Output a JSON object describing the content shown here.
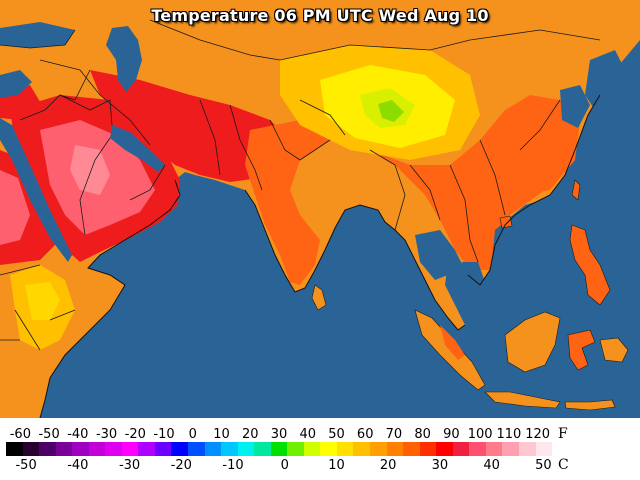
{
  "map": {
    "title": "Temperature 06 PM UTC Wed Aug 10",
    "ocean_color": "#2a6496",
    "land_color": "#f5921e",
    "border_color": "#1a1a1a"
  },
  "legend": {
    "f_unit": "F",
    "c_unit": "C",
    "f_labels": [
      "-60",
      "-50",
      "-40",
      "-30",
      "-20",
      "-10",
      "0",
      "10",
      "20",
      "30",
      "40",
      "50",
      "60",
      "70",
      "80",
      "90",
      "100",
      "110",
      "120"
    ],
    "c_labels": [
      "-50",
      "-40",
      "-30",
      "-20",
      "-10",
      "0",
      "10",
      "20",
      "30",
      "40",
      "50"
    ],
    "colors": [
      "#000000",
      "#2a0033",
      "#4d0066",
      "#7a0099",
      "#a000c0",
      "#c300d8",
      "#e000f0",
      "#ff00ff",
      "#b000ff",
      "#6a00ff",
      "#0000ff",
      "#0050ff",
      "#0090ff",
      "#00c8ff",
      "#00f0f0",
      "#00e8a0",
      "#00e000",
      "#70f000",
      "#d0ff00",
      "#ffff00",
      "#ffe000",
      "#ffc000",
      "#ffa000",
      "#ff8000",
      "#ff6000",
      "#ff3000",
      "#ff0000",
      "#f02040",
      "#ff5070",
      "#ff7a8a",
      "#ffa0b0",
      "#ffc8d0",
      "#ffe8ec"
    ]
  }
}
